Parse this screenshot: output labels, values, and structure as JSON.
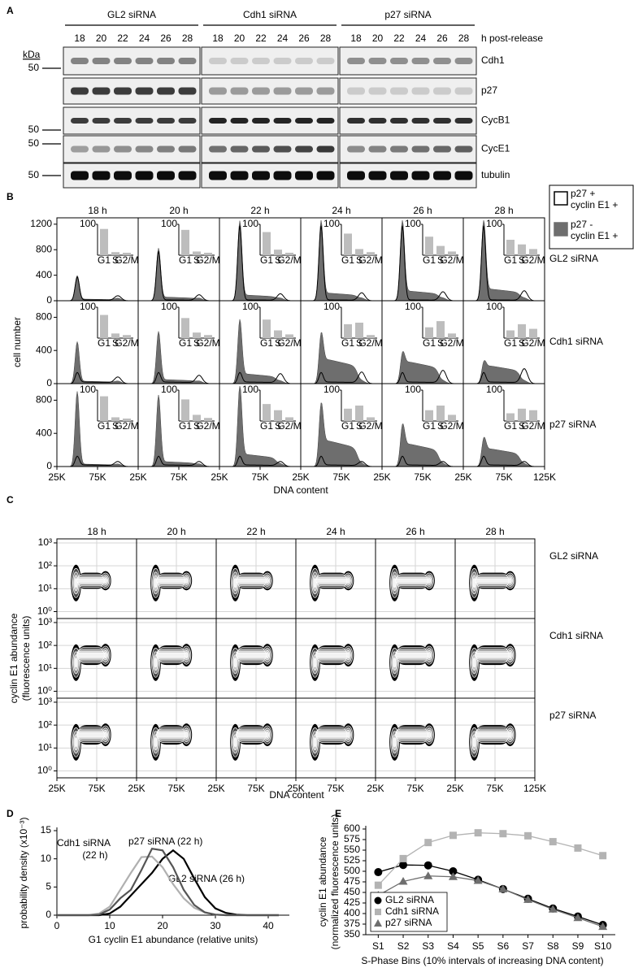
{
  "panel_a": {
    "letter": "A",
    "groups": [
      "GL2 siRNA",
      "Cdh1 siRNA",
      "p27 siRNA"
    ],
    "timepoints": [
      "18",
      "20",
      "22",
      "24",
      "26",
      "28"
    ],
    "time_unit": "h post-release",
    "kda_label": "kDa",
    "rows": [
      {
        "name": "Cdh1",
        "marker": "50"
      },
      {
        "name": "p27"
      },
      {
        "name": "CycB1",
        "marker": "50"
      },
      {
        "name": "CycE1",
        "marker": "50"
      },
      {
        "name": "tubulin",
        "marker": "50"
      }
    ]
  },
  "panel_b": {
    "letter": "B",
    "columns": [
      "18 h",
      "20 h",
      "22 h",
      "24 h",
      "26 h",
      "28 h"
    ],
    "xlim": [
      25000,
      125000
    ],
    "xticks": [
      {
        "value": 25000,
        "label": "25K"
      },
      {
        "value": 75000,
        "label": "75K"
      },
      {
        "value": 125000,
        "label": "125K"
      }
    ],
    "xlabel": "DNA content",
    "ylabel": "cell number",
    "inset_categories": [
      "G1",
      "S",
      "G2/M"
    ],
    "inset_ylim": [
      0,
      100
    ],
    "inset_yticks": [
      100
    ],
    "inset_color": "#bdbdbd",
    "legend": [
      {
        "lines": [
          "p27 +",
          "cyclin E1 +"
        ],
        "style": "outline",
        "color": "#000000"
      },
      {
        "lines": [
          "p27 -",
          "cyclin E1 +"
        ],
        "style": "fill",
        "color": "#6e6e6e"
      }
    ],
    "rows": [
      {
        "name": "GL2 siRNA",
        "ylim": [
          0,
          1300
        ],
        "yticks": [
          0,
          400,
          800,
          1200
        ],
        "insets": [
          [
            85,
            10,
            8
          ],
          [
            82,
            12,
            8
          ],
          [
            75,
            18,
            8
          ],
          [
            70,
            20,
            10
          ],
          [
            60,
            30,
            12
          ],
          [
            50,
            35,
            20
          ]
        ]
      },
      {
        "name": "Cdh1 siRNA",
        "ylim": [
          0,
          1000
        ],
        "yticks": [
          0,
          400,
          800
        ],
        "insets": [
          [
            75,
            15,
            10
          ],
          [
            65,
            18,
            10
          ],
          [
            60,
            25,
            12
          ],
          [
            45,
            50,
            10
          ],
          [
            35,
            55,
            15
          ],
          [
            25,
            45,
            30
          ]
        ]
      },
      {
        "name": "p27 siRNA",
        "ylim": [
          0,
          1000
        ],
        "yticks": [
          0,
          400,
          800
        ],
        "insets": [
          [
            80,
            12,
            8
          ],
          [
            70,
            20,
            10
          ],
          [
            55,
            35,
            12
          ],
          [
            40,
            50,
            12
          ],
          [
            35,
            50,
            20
          ],
          [
            25,
            40,
            35
          ]
        ]
      }
    ]
  },
  "panel_c": {
    "letter": "C",
    "columns": [
      "18 h",
      "20 h",
      "22 h",
      "24 h",
      "26 h",
      "28 h"
    ],
    "rows": [
      "GL2 siRNA",
      "Cdh1 siRNA",
      "p27 siRNA"
    ],
    "xlim": [
      25000,
      125000
    ],
    "xticks": [
      {
        "value": 25000,
        "label": "25K"
      },
      {
        "value": 75000,
        "label": "75K"
      },
      {
        "value": 125000,
        "label": "125K"
      }
    ],
    "ylim": [
      0.5,
      1500
    ],
    "yscale": "log",
    "yticks": [
      {
        "value": 1,
        "label": "10⁰"
      },
      {
        "value": 10,
        "label": "10¹"
      },
      {
        "value": 100,
        "label": "10²"
      },
      {
        "value": 1000,
        "label": "10³"
      }
    ],
    "grid": true,
    "xlabel": "DNA content",
    "ylabel": [
      "cyclin E1 abundance",
      "(fluorescence units)"
    ]
  },
  "chart_data": [
    {
      "type": "line",
      "letter": "D",
      "xlabel": "G1 cyclin E1 abundance (relative units)",
      "ylabel": "probability density (x10⁻³)",
      "x": [
        0,
        2,
        4,
        6,
        8,
        10,
        12,
        14,
        16,
        18,
        20,
        22,
        24,
        26,
        28,
        30,
        32,
        34,
        36,
        38,
        40,
        42
      ],
      "xlim": [
        0,
        44
      ],
      "xticks": [
        0,
        10,
        20,
        30,
        40
      ],
      "ylim": [
        0,
        15
      ],
      "yticks": [
        0,
        5,
        10,
        15
      ],
      "series": [
        {
          "name": [
            "GL2 siRNA (26 h)"
          ],
          "color": "#000000",
          "values": [
            0,
            0,
            0,
            0,
            0,
            0.3,
            1.5,
            3.5,
            5.5,
            7.5,
            10,
            11.5,
            10,
            6.5,
            3.2,
            1.2,
            0.4,
            0.1,
            0,
            0,
            0,
            0
          ]
        },
        {
          "name": [
            "Cdh1 siRNA",
            "(22 h)"
          ],
          "color": "#b0b0b0",
          "values": [
            0,
            0,
            0,
            0,
            0.3,
            1.5,
            4.5,
            7.5,
            10.3,
            10.4,
            8.5,
            5.5,
            3,
            1.3,
            0.5,
            0.1,
            0,
            0,
            0,
            0,
            0,
            0
          ]
        },
        {
          "name": [
            "p27 siRNA (22 h)"
          ],
          "color": "#555555",
          "values": [
            0,
            0,
            0,
            0,
            0.1,
            1,
            3,
            4.5,
            8,
            11.8,
            11.5,
            8.5,
            4.5,
            1.8,
            0.5,
            0.1,
            0,
            0,
            0,
            0,
            0,
            0
          ]
        }
      ]
    },
    {
      "type": "line",
      "letter": "E",
      "xlabel": "S-Phase Bins (10% intervals of increasing DNA content)",
      "ylabel": [
        "cyclin E1 abundance",
        "(normalized fluorescence units)"
      ],
      "categories": [
        "S1",
        "S2",
        "S3",
        "S4",
        "S5",
        "S6",
        "S7",
        "S8",
        "S9",
        "S10"
      ],
      "ylim": [
        350,
        600
      ],
      "yticks": [
        350,
        375,
        400,
        425,
        450,
        475,
        500,
        525,
        550,
        575,
        600
      ],
      "legend": "lower left",
      "series": [
        {
          "name": "GL2 siRNA",
          "color": "#000000",
          "marker": "circle",
          "values": [
            498,
            515,
            514,
            500,
            480,
            458,
            435,
            412,
            393,
            373
          ]
        },
        {
          "name": "Cdh1 siRNA",
          "color": "#b3b3b3",
          "marker": "square",
          "values": [
            467,
            530,
            568,
            585,
            591,
            589,
            584,
            570,
            555,
            537
          ]
        },
        {
          "name": "p27 siRNA",
          "color": "#6e6e6e",
          "marker": "triangle",
          "values": [
            443,
            476,
            489,
            487,
            478,
            458,
            433,
            410,
            390,
            369
          ]
        }
      ]
    }
  ]
}
